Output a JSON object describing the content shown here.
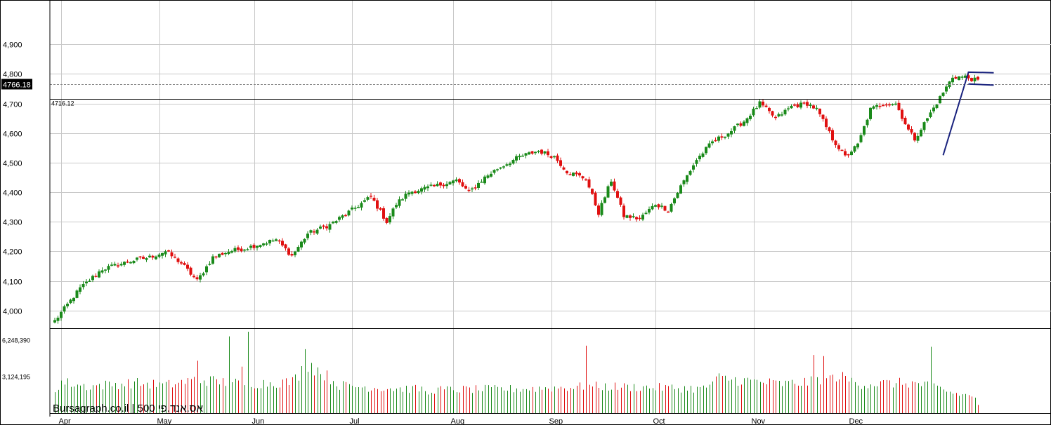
{
  "watermark": "Bursagraph.co.il | 500 אס.אנד.פי",
  "last_price_label": "4766.18",
  "level_label": "4716.12",
  "chart_data": [
    {
      "type": "candlestick",
      "title": "",
      "yticks": [
        "4,000",
        "4,100",
        "4,200",
        "4,300",
        "4,400",
        "4,500",
        "4,600",
        "4,700",
        "4,800",
        "4,900"
      ],
      "ylim": [
        3940,
        5050
      ],
      "xticks": [
        "Apr",
        "May",
        "Jun",
        "Jul",
        "Aug",
        "Sep",
        "Oct",
        "Nov",
        "Dec"
      ],
      "xtick_values": [
        2,
        33,
        63,
        94,
        126,
        157,
        190,
        221,
        252
      ],
      "grid": true,
      "last_price": 4766.18,
      "horizontal_level": 4716.12,
      "pattern_lines": [
        [
          [
            281,
            4525
          ],
          [
            289,
            4806
          ],
          [
            297,
            4804
          ]
        ],
        [
          [
            289,
            4766
          ],
          [
            297,
            4762
          ]
        ]
      ],
      "anchors": [
        [
          0,
          3965
        ],
        [
          8,
          4075
        ],
        [
          15,
          4140
        ],
        [
          20,
          4155
        ],
        [
          25,
          4170
        ],
        [
          30,
          4180
        ],
        [
          35,
          4200
        ],
        [
          40,
          4160
        ],
        [
          45,
          4100
        ],
        [
          50,
          4180
        ],
        [
          55,
          4200
        ],
        [
          60,
          4210
        ],
        [
          65,
          4225
        ],
        [
          70,
          4240
        ],
        [
          75,
          4185
        ],
        [
          80,
          4260
        ],
        [
          87,
          4290
        ],
        [
          94,
          4340
        ],
        [
          100,
          4385
        ],
        [
          105,
          4300
        ],
        [
          108,
          4360
        ],
        [
          112,
          4400
        ],
        [
          120,
          4420
        ],
        [
          127,
          4440
        ],
        [
          131,
          4400
        ],
        [
          136,
          4450
        ],
        [
          140,
          4480
        ],
        [
          147,
          4520
        ],
        [
          153,
          4540
        ],
        [
          158,
          4520
        ],
        [
          162,
          4470
        ],
        [
          168,
          4445
        ],
        [
          172,
          4330
        ],
        [
          176,
          4440
        ],
        [
          180,
          4320
        ],
        [
          185,
          4310
        ],
        [
          190,
          4360
        ],
        [
          194,
          4340
        ],
        [
          198,
          4420
        ],
        [
          203,
          4510
        ],
        [
          208,
          4570
        ],
        [
          213,
          4600
        ],
        [
          218,
          4640
        ],
        [
          223,
          4700
        ],
        [
          228,
          4650
        ],
        [
          233,
          4690
        ],
        [
          238,
          4700
        ],
        [
          241,
          4680
        ],
        [
          246,
          4580
        ],
        [
          250,
          4520
        ],
        [
          254,
          4560
        ],
        [
          258,
          4680
        ],
        [
          262,
          4700
        ],
        [
          266,
          4700
        ],
        [
          270,
          4610
        ],
        [
          272,
          4580
        ],
        [
          276,
          4650
        ],
        [
          280,
          4720
        ],
        [
          284,
          4790
        ],
        [
          288,
          4790
        ],
        [
          292,
          4776
        ]
      ],
      "volume": {
        "yticks": [
          "3,124,195",
          "6,248,390"
        ],
        "ylim": [
          0,
          7300000
        ],
        "profile": [
          [
            0,
            2800000
          ],
          [
            10,
            2300000
          ],
          [
            25,
            2600000
          ],
          [
            35,
            2400000
          ],
          [
            45,
            2900000
          ],
          [
            60,
            2500000
          ],
          [
            75,
            2700000
          ],
          [
            80,
            4300000
          ],
          [
            90,
            2400000
          ],
          [
            100,
            2200000
          ],
          [
            120,
            2000000
          ],
          [
            150,
            2100000
          ],
          [
            170,
            2300000
          ],
          [
            190,
            2200000
          ],
          [
            205,
            2100000
          ],
          [
            210,
            3000000
          ],
          [
            230,
            2500000
          ],
          [
            240,
            2700000
          ],
          [
            245,
            3400000
          ],
          [
            255,
            2500000
          ],
          [
            270,
            2600000
          ],
          [
            278,
            2300000
          ],
          [
            284,
            1700000
          ],
          [
            292,
            1400000
          ]
        ],
        "spikes": {
          "0": 1800000,
          "1": 2000000,
          "45": 4500000,
          "55": 6600000,
          "59": 4000000,
          "61": 7000000,
          "79": 5500000,
          "118": 1600000,
          "168": 5800000,
          "240": 5000000,
          "243": 4900000,
          "244": 3000000,
          "246": 3300000,
          "277": 5700000,
          "292": 700000
        }
      }
    }
  ]
}
